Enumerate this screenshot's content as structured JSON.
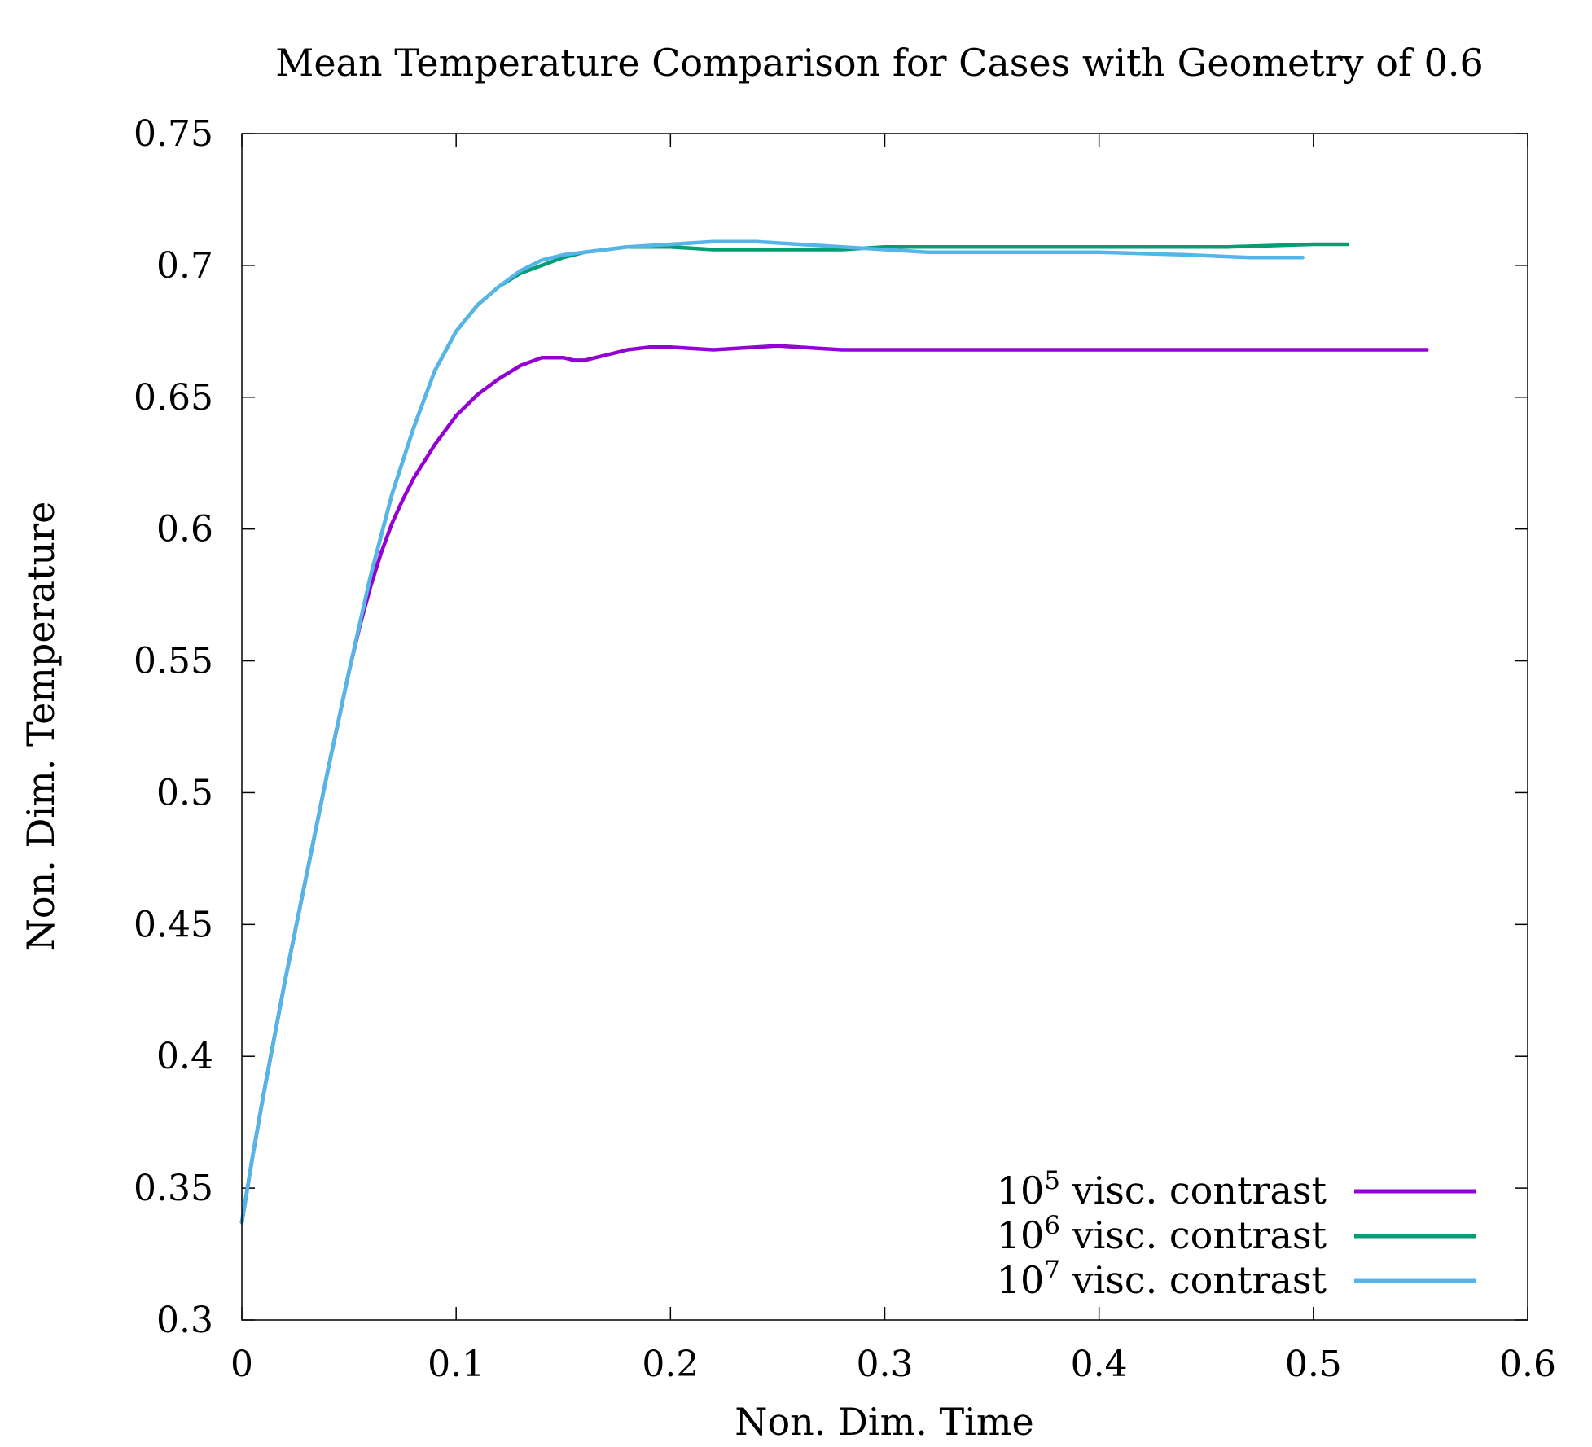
{
  "chart_data": {
    "type": "line",
    "title": "Mean Temperature Comparison for Cases with Geometry of 0.6",
    "xlabel": "Non. Dim. Time",
    "ylabel": "Non. Dim. Temperature",
    "xlim": [
      0,
      0.6
    ],
    "ylim": [
      0.3,
      0.75
    ],
    "xticks": [
      "0",
      "0.1",
      "0.2",
      "0.3",
      "0.4",
      "0.5",
      "0.6"
    ],
    "yticks": [
      "0.3",
      "0.35",
      "0.4",
      "0.45",
      "0.5",
      "0.55",
      "0.6",
      "0.65",
      "0.7",
      "0.75"
    ],
    "grid": false,
    "legend_position": "bottom-right",
    "series": [
      {
        "name": "10^5 visc. contrast",
        "legend_base": "10",
        "legend_exp": "5",
        "legend_text": " visc. contrast",
        "color": "#9400d3",
        "x": [
          0,
          0.005,
          0.01,
          0.02,
          0.03,
          0.04,
          0.05,
          0.055,
          0.06,
          0.065,
          0.07,
          0.075,
          0.08,
          0.09,
          0.1,
          0.11,
          0.12,
          0.13,
          0.14,
          0.145,
          0.15,
          0.155,
          0.16,
          0.165,
          0.17,
          0.18,
          0.19,
          0.2,
          0.22,
          0.24,
          0.25,
          0.26,
          0.28,
          0.3,
          0.34,
          0.38,
          0.4,
          0.42,
          0.45,
          0.5,
          0.553
        ],
        "y": [
          0.337,
          0.362,
          0.385,
          0.428,
          0.468,
          0.508,
          0.546,
          0.563,
          0.578,
          0.591,
          0.602,
          0.611,
          0.619,
          0.632,
          0.643,
          0.651,
          0.657,
          0.662,
          0.665,
          0.665,
          0.665,
          0.664,
          0.664,
          0.665,
          0.666,
          0.668,
          0.669,
          0.669,
          0.668,
          0.669,
          0.6695,
          0.669,
          0.668,
          0.668,
          0.668,
          0.668,
          0.668,
          0.668,
          0.668,
          0.668,
          0.668
        ]
      },
      {
        "name": "10^6 visc. contrast",
        "legend_base": "10",
        "legend_exp": "6",
        "legend_text": " visc. contrast",
        "color": "#009e73",
        "x": [
          0,
          0.005,
          0.01,
          0.02,
          0.03,
          0.04,
          0.05,
          0.06,
          0.07,
          0.08,
          0.09,
          0.1,
          0.11,
          0.12,
          0.13,
          0.14,
          0.15,
          0.16,
          0.17,
          0.18,
          0.19,
          0.2,
          0.22,
          0.24,
          0.26,
          0.28,
          0.3,
          0.34,
          0.38,
          0.42,
          0.46,
          0.5,
          0.516
        ],
        "y": [
          0.337,
          0.362,
          0.385,
          0.428,
          0.468,
          0.508,
          0.546,
          0.582,
          0.613,
          0.638,
          0.66,
          0.675,
          0.685,
          0.692,
          0.697,
          0.7,
          0.703,
          0.705,
          0.706,
          0.707,
          0.707,
          0.707,
          0.706,
          0.706,
          0.706,
          0.706,
          0.707,
          0.707,
          0.707,
          0.707,
          0.707,
          0.708,
          0.708
        ]
      },
      {
        "name": "10^7 visc. contrast",
        "legend_base": "10",
        "legend_exp": "7",
        "legend_text": " visc. contrast",
        "color": "#56b4e9",
        "x": [
          0,
          0.005,
          0.01,
          0.02,
          0.03,
          0.04,
          0.05,
          0.06,
          0.07,
          0.08,
          0.09,
          0.1,
          0.11,
          0.12,
          0.13,
          0.14,
          0.15,
          0.16,
          0.17,
          0.18,
          0.2,
          0.22,
          0.24,
          0.26,
          0.28,
          0.3,
          0.32,
          0.36,
          0.4,
          0.44,
          0.47,
          0.495
        ],
        "y": [
          0.337,
          0.362,
          0.385,
          0.428,
          0.468,
          0.508,
          0.546,
          0.582,
          0.613,
          0.638,
          0.66,
          0.675,
          0.685,
          0.692,
          0.698,
          0.702,
          0.704,
          0.705,
          0.706,
          0.707,
          0.708,
          0.709,
          0.709,
          0.708,
          0.707,
          0.706,
          0.705,
          0.705,
          0.705,
          0.704,
          0.703,
          0.703
        ]
      }
    ]
  }
}
